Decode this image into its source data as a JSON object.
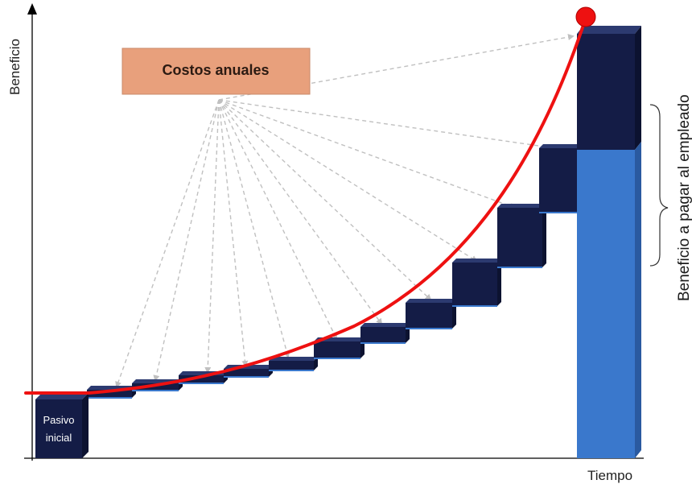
{
  "axes": {
    "y_label": "Beneficio",
    "x_label": "Tiempo"
  },
  "callout": {
    "label": "Costos anuales",
    "fill_color": "#e8a07c"
  },
  "initial_box": {
    "line1": "Pasivo",
    "line2": "inicial"
  },
  "bracket": {
    "label": "Beneficio a pagar al empleado"
  },
  "colors": {
    "navy": "#141c46",
    "blue": "#3a78cc",
    "curve": "#ee1111",
    "arrow": "#c0c0c0",
    "axis": "#000000"
  }
}
